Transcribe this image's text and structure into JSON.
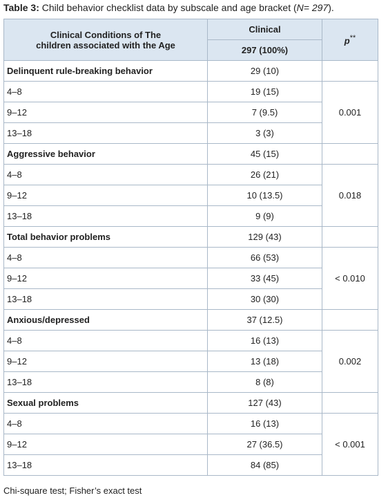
{
  "caption": {
    "label": "Table 3:",
    "text": "Child behavior checklist data by subscale and age bracket (",
    "n": "N= 297",
    "close": ")."
  },
  "table": {
    "header": {
      "condition": "Clinical Conditions of The children associated with the  Age",
      "clinical": "Clinical",
      "total": "297 (100%)",
      "p": "p",
      "p_mark": "**"
    },
    "groups": [
      {
        "title": "Delinquent rule-breaking behavior",
        "value": "29 (10)",
        "p": "0.001",
        "rows": [
          {
            "age": "4–8",
            "value": "19 (15)"
          },
          {
            "age": "9–12",
            "value": "7 (9.5)"
          },
          {
            "age": "13–18",
            "value": "3 (3)"
          }
        ]
      },
      {
        "title": "Aggressive behavior",
        "value": "45 (15)",
        "p": "0.018",
        "rows": [
          {
            "age": "4–8",
            "value": "26 (21)"
          },
          {
            "age": "9–12",
            "value": "10 (13.5)"
          },
          {
            "age": "13–18",
            "value": "9 (9)"
          }
        ]
      },
      {
        "title": "Total behavior problems",
        "value": "129 (43)",
        "p": "< 0.010",
        "rows": [
          {
            "age": "4–8",
            "value": "66 (53)"
          },
          {
            "age": "9–12",
            "value": "33 (45)"
          },
          {
            "age": "13–18",
            "value": "30 (30)"
          }
        ]
      },
      {
        "title": "Anxious/depressed",
        "value": "37 (12.5)",
        "p": "0.002",
        "rows": [
          {
            "age": "4–8",
            "value": "16 (13)"
          },
          {
            "age": "9–12",
            "value": "13 (18)"
          },
          {
            "age": "13–18",
            "value": "8 (8)"
          }
        ]
      },
      {
        "title": "Sexual problems",
        "value": "127 (43)",
        "p": "< 0.001",
        "rows": [
          {
            "age": "4–8",
            "value": "16 (13)"
          },
          {
            "age": "9–12",
            "value": "27 (36.5)"
          },
          {
            "age": "13–18",
            "value": "84 (85)"
          }
        ]
      }
    ]
  },
  "footer": "Chi-square test; Fisher’s exact test"
}
